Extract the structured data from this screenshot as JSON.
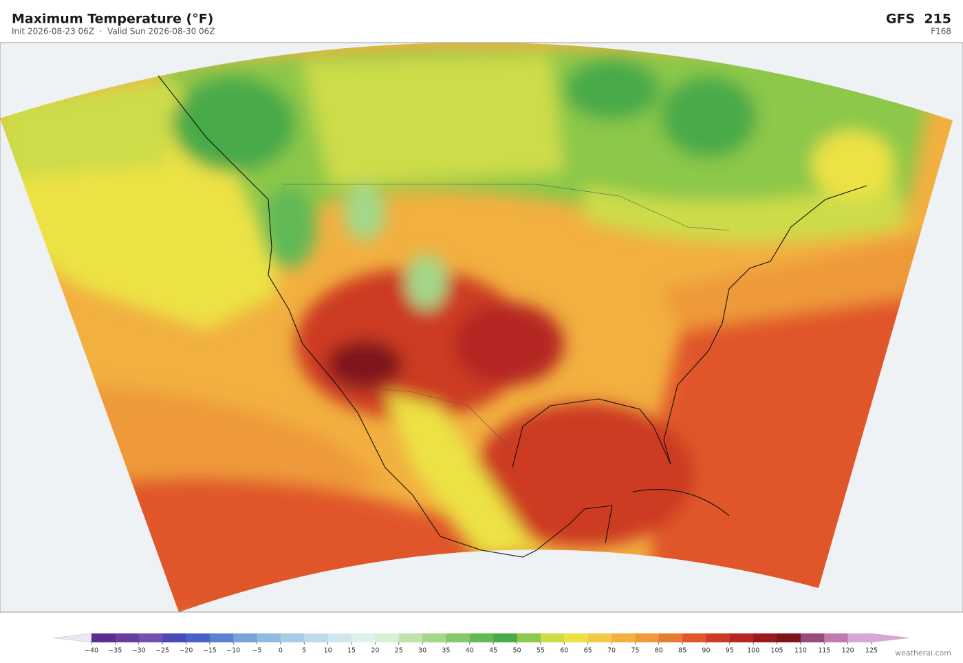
{
  "header": {
    "title": "Maximum Temperature  (°F)",
    "subtitle": "Init 2026-08-23 06Z  ·  Valid Sun 2026-08-30 06Z",
    "model": "GFS  215",
    "forecast_hour": "F168"
  },
  "colorbar": {
    "ticks": [
      {
        "value": -40,
        "label": "−40"
      },
      {
        "value": -35,
        "label": "−35"
      },
      {
        "value": -30,
        "label": "−30"
      },
      {
        "value": -25,
        "label": "−25"
      },
      {
        "value": -20,
        "label": "−20"
      },
      {
        "value": -15,
        "label": "−15"
      },
      {
        "value": -10,
        "label": "−10"
      },
      {
        "value": -5,
        "label": "−5"
      },
      0,
      5,
      10,
      15,
      20,
      25,
      30,
      35,
      40,
      45,
      50,
      55,
      60,
      65,
      70,
      75,
      80,
      85,
      90,
      95,
      100,
      105,
      110,
      115,
      120,
      125
    ],
    "colors": [
      "#5b2d8e",
      "#6a3d9a",
      "#7050b0",
      "#4a4ab8",
      "#4a62c8",
      "#5a82d0",
      "#7aa2d8",
      "#90badf",
      "#a8cce6",
      "#bcdcec",
      "#cfe8ee",
      "#e0f0ea",
      "#d8efd0",
      "#bfe3a8",
      "#a3d88a",
      "#83c96a",
      "#62b955",
      "#4aaa48",
      "#8cc84a",
      "#cddc48",
      "#ece245",
      "#f4c94a",
      "#f2b040",
      "#ee9a3a",
      "#e87a32",
      "#e0562a",
      "#cc3a24",
      "#b52820",
      "#9a1a1c",
      "#7e141a",
      "#9a4a7a",
      "#c07ab0",
      "#d8a8d4"
    ],
    "under_color": "#ece8f2",
    "over_color": "#d8a8d4"
  },
  "footer": {
    "credit": "weatherai.com"
  }
}
